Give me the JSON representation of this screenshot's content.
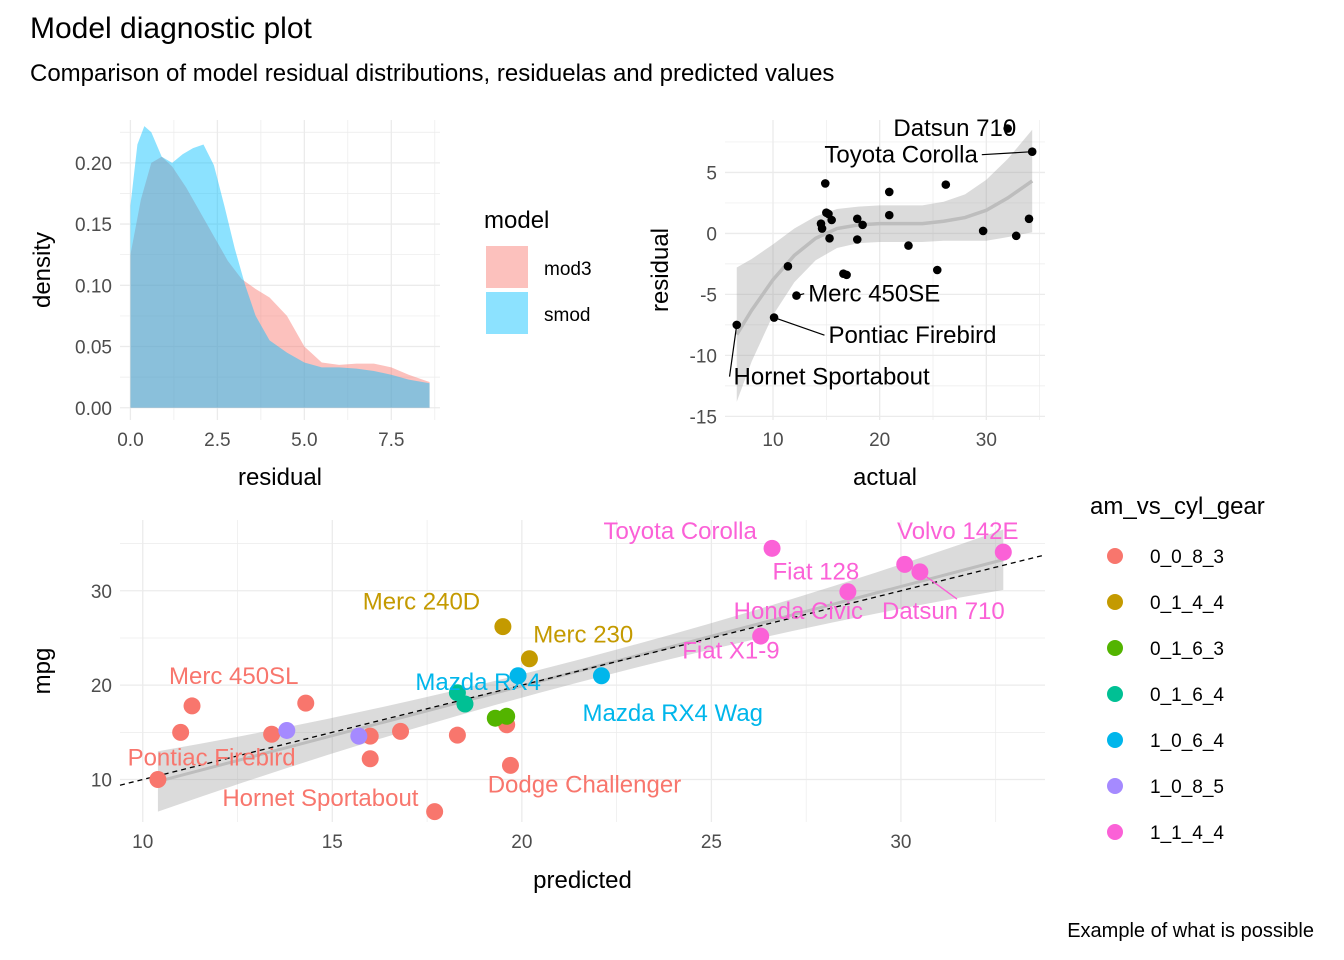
{
  "title": "Model diagnostic plot",
  "subtitle": "Comparison of model residual distributions, residuelas and predicted values",
  "caption": "Example of what is possible",
  "chart_data": [
    {
      "type": "area",
      "panel": "density",
      "xlabel": "residual",
      "ylabel": "density",
      "xlim": [
        -0.3,
        8.9
      ],
      "ylim": [
        -0.01,
        0.235
      ],
      "x_ticks": [
        "0.0",
        "2.5",
        "5.0",
        "7.5"
      ],
      "y_ticks": [
        "0.00",
        "0.05",
        "0.10",
        "0.15",
        "0.20"
      ],
      "x_tick_values": [
        0,
        2.5,
        5,
        7.5
      ],
      "y_tick_values": [
        0,
        0.05,
        0.1,
        0.15,
        0.2
      ],
      "legend_title": "model",
      "legend_position": "right",
      "series": [
        {
          "name": "mod3",
          "color": "#F8766D",
          "x": [
            0.0,
            0.3,
            0.6,
            0.9,
            1.2,
            1.6,
            2.0,
            2.4,
            2.8,
            3.2,
            3.6,
            4.0,
            4.5,
            5.0,
            5.5,
            6.0,
            6.5,
            7.0,
            7.5,
            8.0,
            8.6
          ],
          "y": [
            0.125,
            0.17,
            0.2,
            0.205,
            0.197,
            0.18,
            0.16,
            0.14,
            0.12,
            0.105,
            0.097,
            0.09,
            0.075,
            0.05,
            0.037,
            0.035,
            0.036,
            0.036,
            0.033,
            0.027,
            0.021
          ]
        },
        {
          "name": "smod",
          "color": "#00BFFF",
          "x": [
            0.0,
            0.2,
            0.4,
            0.6,
            0.9,
            1.2,
            1.5,
            1.8,
            2.1,
            2.4,
            2.7,
            3.0,
            3.3,
            3.6,
            4.0,
            4.5,
            5.0,
            5.5,
            6.0,
            6.5,
            7.0,
            7.5,
            8.0,
            8.6
          ],
          "y": [
            0.165,
            0.215,
            0.23,
            0.225,
            0.205,
            0.2,
            0.207,
            0.212,
            0.215,
            0.198,
            0.165,
            0.13,
            0.1,
            0.075,
            0.055,
            0.045,
            0.037,
            0.033,
            0.033,
            0.032,
            0.03,
            0.027,
            0.023,
            0.02
          ]
        }
      ]
    },
    {
      "type": "scatter",
      "panel": "residual_vs_actual",
      "xlabel": "actual",
      "ylabel": "residual",
      "xlim": [
        5.5,
        35.5
      ],
      "ylim": [
        -15.3,
        9.3
      ],
      "x_ticks": [
        "10",
        "20",
        "30"
      ],
      "y_ticks": [
        "-15",
        "-10",
        "-5",
        "0",
        "5"
      ],
      "x_tick_values": [
        10,
        20,
        30
      ],
      "y_tick_values": [
        -15,
        -10,
        -5,
        0,
        5
      ],
      "points": [
        {
          "x": 6.6,
          "y": -7.5
        },
        {
          "x": 10.1,
          "y": -6.9
        },
        {
          "x": 12.2,
          "y": -5.1
        },
        {
          "x": 11.4,
          "y": -2.7
        },
        {
          "x": 14.9,
          "y": 4.1
        },
        {
          "x": 15.0,
          "y": 1.7
        },
        {
          "x": 15.2,
          "y": 1.6
        },
        {
          "x": 15.5,
          "y": 1.1
        },
        {
          "x": 14.5,
          "y": 0.8
        },
        {
          "x": 14.6,
          "y": 0.4
        },
        {
          "x": 15.3,
          "y": -0.4
        },
        {
          "x": 16.6,
          "y": -3.3
        },
        {
          "x": 16.9,
          "y": -3.4
        },
        {
          "x": 17.9,
          "y": 1.2
        },
        {
          "x": 18.4,
          "y": 0.7
        },
        {
          "x": 17.9,
          "y": -0.5
        },
        {
          "x": 20.9,
          "y": 3.4
        },
        {
          "x": 20.9,
          "y": 1.5
        },
        {
          "x": 22.7,
          "y": -1.0
        },
        {
          "x": 26.2,
          "y": 4.0
        },
        {
          "x": 25.4,
          "y": -3.0
        },
        {
          "x": 29.7,
          "y": 0.2
        },
        {
          "x": 32.0,
          "y": 8.6
        },
        {
          "x": 34.3,
          "y": 6.7
        },
        {
          "x": 32.8,
          "y": -0.2
        },
        {
          "x": 34.0,
          "y": 1.2
        }
      ],
      "smooth_fit": [
        {
          "x": 6.6,
          "y": -8.3
        },
        {
          "x": 8.0,
          "y": -6.3
        },
        {
          "x": 10.0,
          "y": -3.8
        },
        {
          "x": 12.0,
          "y": -1.8
        },
        {
          "x": 14.0,
          "y": -0.4
        },
        {
          "x": 16.0,
          "y": 0.4
        },
        {
          "x": 18.0,
          "y": 0.7
        },
        {
          "x": 20.0,
          "y": 0.8
        },
        {
          "x": 22.0,
          "y": 0.8
        },
        {
          "x": 24.0,
          "y": 0.8
        },
        {
          "x": 26.0,
          "y": 1.0
        },
        {
          "x": 28.0,
          "y": 1.3
        },
        {
          "x": 30.0,
          "y": 1.9
        },
        {
          "x": 32.0,
          "y": 2.9
        },
        {
          "x": 34.3,
          "y": 4.3
        }
      ],
      "band_half_width": [
        5.5,
        4.2,
        2.9,
        2.2,
        1.8,
        1.6,
        1.5,
        1.5,
        1.5,
        1.5,
        1.6,
        1.9,
        2.5,
        3.2,
        4.2
      ],
      "labels": [
        {
          "text": "Datsun 710",
          "x": 32.8,
          "y": 8.0,
          "anchor": "end"
        },
        {
          "text": "Toyota Corolla",
          "x": 29.2,
          "y": 5.8,
          "anchor": "end",
          "leader_to": {
            "x": 34.3,
            "y": 6.7
          }
        },
        {
          "text": "Merc 450SE",
          "x": 13.3,
          "y": -5.6,
          "anchor": "start",
          "leader_to": {
            "x": 12.2,
            "y": -5.1
          }
        },
        {
          "text": "Pontiac Firebird",
          "x": 15.2,
          "y": -9.0,
          "anchor": "start",
          "leader_to": {
            "x": 10.1,
            "y": -6.9
          }
        },
        {
          "text": "Hornet Sportabout",
          "x": 6.3,
          "y": -12.4,
          "anchor": "start",
          "leader_to": {
            "x": 6.6,
            "y": -7.5
          }
        }
      ]
    },
    {
      "type": "scatter",
      "panel": "mpg_vs_predicted",
      "xlabel": "predicted",
      "ylabel": "mpg",
      "xlim": [
        9.4,
        33.8
      ],
      "ylim": [
        5.5,
        37.5
      ],
      "x_ticks": [
        "10",
        "15",
        "20",
        "25",
        "30"
      ],
      "y_ticks": [
        "10",
        "20",
        "30"
      ],
      "x_tick_values": [
        10,
        15,
        20,
        25,
        30
      ],
      "y_tick_values": [
        10,
        20,
        30
      ],
      "legend_title": "am_vs_cyl_gear",
      "legend_position": "right",
      "groups": [
        {
          "name": "0_0_8_3",
          "color": "#F8766D"
        },
        {
          "name": "0_1_4_4",
          "color": "#C49A00"
        },
        {
          "name": "0_1_6_3",
          "color": "#53B400"
        },
        {
          "name": "0_1_6_4",
          "color": "#00C094"
        },
        {
          "name": "1_0_6_4",
          "color": "#00B6EB"
        },
        {
          "name": "1_0_8_5",
          "color": "#A58AFF"
        },
        {
          "name": "1_1_4_4",
          "color": "#FB61D7"
        }
      ],
      "points": [
        {
          "x": 10.4,
          "y": 10.0,
          "g": 0
        },
        {
          "x": 11.0,
          "y": 15.0,
          "g": 0
        },
        {
          "x": 11.3,
          "y": 17.8,
          "g": 0
        },
        {
          "x": 13.4,
          "y": 14.8,
          "g": 0
        },
        {
          "x": 14.3,
          "y": 18.1,
          "g": 0
        },
        {
          "x": 16.0,
          "y": 14.6,
          "g": 0
        },
        {
          "x": 16.0,
          "y": 12.2,
          "g": 0
        },
        {
          "x": 16.8,
          "y": 15.1,
          "g": 0
        },
        {
          "x": 17.7,
          "y": 6.6,
          "g": 0
        },
        {
          "x": 18.3,
          "y": 14.7,
          "g": 0
        },
        {
          "x": 19.6,
          "y": 15.8,
          "g": 0
        },
        {
          "x": 19.7,
          "y": 11.5,
          "g": 0
        },
        {
          "x": 19.5,
          "y": 26.2,
          "g": 1
        },
        {
          "x": 20.2,
          "y": 22.8,
          "g": 1
        },
        {
          "x": 19.3,
          "y": 16.5,
          "g": 2
        },
        {
          "x": 19.6,
          "y": 16.7,
          "g": 2
        },
        {
          "x": 18.5,
          "y": 18.0,
          "g": 3
        },
        {
          "x": 18.3,
          "y": 19.2,
          "g": 3
        },
        {
          "x": 19.9,
          "y": 21.0,
          "g": 4
        },
        {
          "x": 22.1,
          "y": 21.0,
          "g": 4
        },
        {
          "x": 13.8,
          "y": 15.2,
          "g": 5
        },
        {
          "x": 15.7,
          "y": 14.6,
          "g": 5
        },
        {
          "x": 26.6,
          "y": 34.5,
          "g": 6
        },
        {
          "x": 28.6,
          "y": 29.9,
          "g": 6
        },
        {
          "x": 30.1,
          "y": 32.8,
          "g": 6
        },
        {
          "x": 30.5,
          "y": 32.0,
          "g": 6
        },
        {
          "x": 32.7,
          "y": 34.1,
          "g": 6
        },
        {
          "x": 26.3,
          "y": 25.2,
          "g": 6
        }
      ],
      "identity_line": {
        "x": [
          9.4,
          33.8
        ],
        "y": [
          9.4,
          33.8
        ]
      },
      "smooth_fit": {
        "x": [
          10.4,
          32.7
        ],
        "y": [
          9.8,
          33.3
        ]
      },
      "band_half_width_at_ends": [
        3.2,
        3.2
      ],
      "band_half_width_mid": 1.2,
      "labels": [
        {
          "text": "Toyota Corolla",
          "x": 26.2,
          "y": 35.5,
          "g": 6,
          "anchor": "end"
        },
        {
          "text": "Volvo 142E",
          "x": 33.1,
          "y": 35.5,
          "g": 6,
          "anchor": "end"
        },
        {
          "text": "Fiat 128",
          "x": 28.9,
          "y": 31.2,
          "g": 6,
          "anchor": "end"
        },
        {
          "text": "Datsun 710",
          "x": 29.5,
          "y": 27.0,
          "g": 6,
          "anchor": "start",
          "leader_to": {
            "x": 30.5,
            "y": 32.0
          }
        },
        {
          "text": "Honda Civic",
          "x": 29.0,
          "y": 27.0,
          "g": 6,
          "anchor": "end"
        },
        {
          "text": "Fiat X1-9",
          "x": 26.8,
          "y": 22.8,
          "g": 6,
          "anchor": "end"
        },
        {
          "text": "Merc 240D",
          "x": 18.9,
          "y": 28.0,
          "g": 1,
          "anchor": "end"
        },
        {
          "text": "Merc 230",
          "x": 20.3,
          "y": 24.5,
          "g": 1,
          "anchor": "start"
        },
        {
          "text": "Mazda RX4",
          "x": 20.5,
          "y": 19.5,
          "g": 4,
          "anchor": "end"
        },
        {
          "text": "Mazda RX4 Wag",
          "x": 21.6,
          "y": 16.2,
          "g": 4,
          "anchor": "start"
        },
        {
          "text": "Merc 450SL",
          "x": 12.4,
          "y": 20.1,
          "g": 0,
          "anchor": "middle"
        },
        {
          "text": "Pontiac Firebird",
          "x": 9.6,
          "y": 11.5,
          "g": 0,
          "anchor": "start"
        },
        {
          "text": "Hornet Sportabout",
          "x": 12.1,
          "y": 7.2,
          "g": 0,
          "anchor": "start"
        },
        {
          "text": "Dodge Challenger",
          "x": 19.1,
          "y": 8.6,
          "g": 0,
          "anchor": "start"
        }
      ]
    }
  ]
}
